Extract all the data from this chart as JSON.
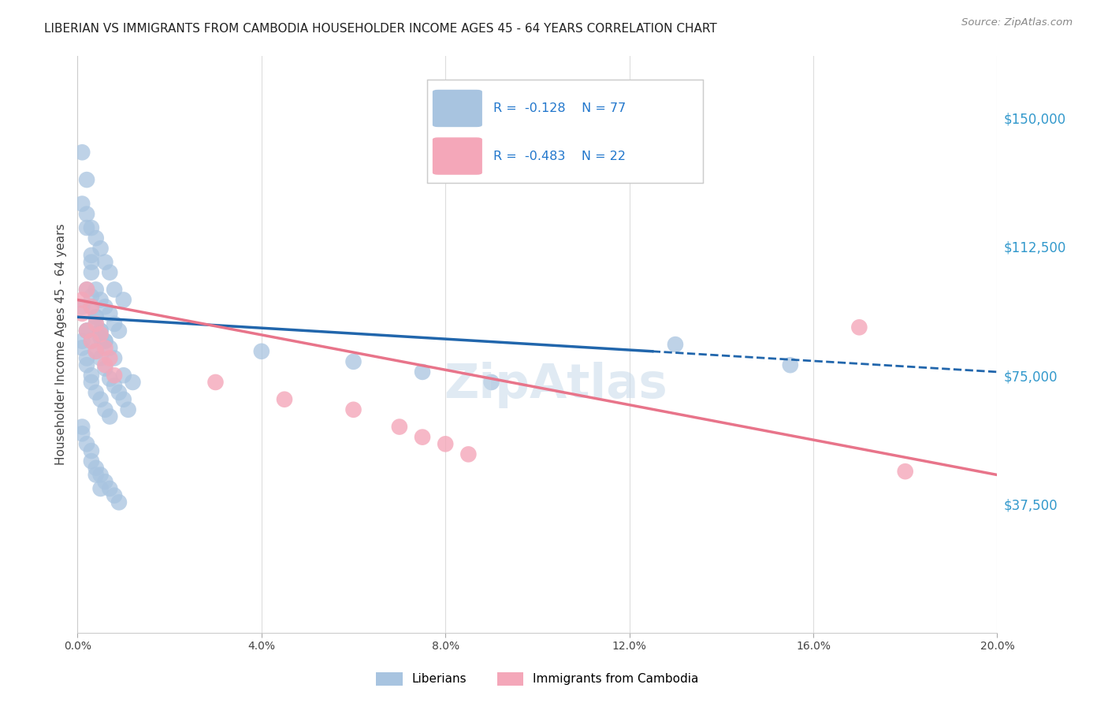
{
  "title": "LIBERIAN VS IMMIGRANTS FROM CAMBODIA HOUSEHOLDER INCOME AGES 45 - 64 YEARS CORRELATION CHART",
  "source": "Source: ZipAtlas.com",
  "ylabel": "Householder Income Ages 45 - 64 years",
  "ytick_labels": [
    "$37,500",
    "$75,000",
    "$112,500",
    "$150,000"
  ],
  "ytick_values": [
    37500,
    75000,
    112500,
    150000
  ],
  "ylim": [
    0,
    168000
  ],
  "xlim": [
    0.0,
    0.2
  ],
  "R_liberian": -0.128,
  "N_liberian": 77,
  "R_cambodia": -0.483,
  "N_cambodia": 22,
  "legend_label_1": "Liberians",
  "legend_label_2": "Immigrants from Cambodia",
  "color_liberian": "#a8c4e0",
  "color_cambodia": "#f4a7b9",
  "trendline_liberian": "#2166ac",
  "trendline_cambodia": "#e8748a",
  "background_color": "#ffffff",
  "grid_color": "#dddddd",
  "trendline_lib_x0": 0.0,
  "trendline_lib_y0": 92000,
  "trendline_lib_x1": 0.2,
  "trendline_lib_y1": 76000,
  "trendline_lib_solid_end": 0.125,
  "trendline_cam_x0": 0.0,
  "trendline_cam_y0": 97000,
  "trendline_cam_x1": 0.2,
  "trendline_cam_y1": 46000,
  "liberian_x": [
    0.001,
    0.002,
    0.002,
    0.003,
    0.003,
    0.004,
    0.004,
    0.005,
    0.005,
    0.006,
    0.001,
    0.002,
    0.003,
    0.003,
    0.004,
    0.005,
    0.006,
    0.007,
    0.008,
    0.009,
    0.001,
    0.002,
    0.002,
    0.003,
    0.004,
    0.005,
    0.006,
    0.007,
    0.008,
    0.01,
    0.001,
    0.001,
    0.002,
    0.002,
    0.003,
    0.003,
    0.004,
    0.005,
    0.006,
    0.007,
    0.001,
    0.001,
    0.002,
    0.003,
    0.004,
    0.005,
    0.006,
    0.007,
    0.008,
    0.009,
    0.002,
    0.003,
    0.004,
    0.005,
    0.006,
    0.007,
    0.008,
    0.009,
    0.01,
    0.011,
    0.003,
    0.004,
    0.005,
    0.006,
    0.007,
    0.008,
    0.01,
    0.012,
    0.13,
    0.155,
    0.003,
    0.004,
    0.005,
    0.04,
    0.06,
    0.075,
    0.09
  ],
  "liberian_y": [
    95000,
    100000,
    88000,
    105000,
    98000,
    92000,
    90000,
    88000,
    86000,
    85000,
    125000,
    118000,
    110000,
    108000,
    100000,
    97000,
    95000,
    93000,
    90000,
    88000,
    140000,
    132000,
    122000,
    118000,
    115000,
    112000,
    108000,
    105000,
    100000,
    97000,
    85000,
    83000,
    80000,
    78000,
    75000,
    73000,
    70000,
    68000,
    65000,
    63000,
    60000,
    58000,
    55000,
    50000,
    48000,
    46000,
    44000,
    42000,
    40000,
    38000,
    88000,
    85000,
    82000,
    80000,
    77000,
    74000,
    72000,
    70000,
    68000,
    65000,
    95000,
    92000,
    88000,
    85000,
    83000,
    80000,
    75000,
    73000,
    84000,
    78000,
    53000,
    46000,
    42000,
    82000,
    79000,
    76000,
    73000
  ],
  "cambodia_x": [
    0.001,
    0.001,
    0.002,
    0.002,
    0.003,
    0.003,
    0.004,
    0.004,
    0.005,
    0.006,
    0.006,
    0.007,
    0.008,
    0.03,
    0.045,
    0.06,
    0.07,
    0.075,
    0.08,
    0.085,
    0.17,
    0.18
  ],
  "cambodia_y": [
    97000,
    93000,
    100000,
    88000,
    95000,
    85000,
    90000,
    82000,
    87000,
    83000,
    78000,
    80000,
    75000,
    73000,
    68000,
    65000,
    60000,
    57000,
    55000,
    52000,
    89000,
    47000
  ]
}
